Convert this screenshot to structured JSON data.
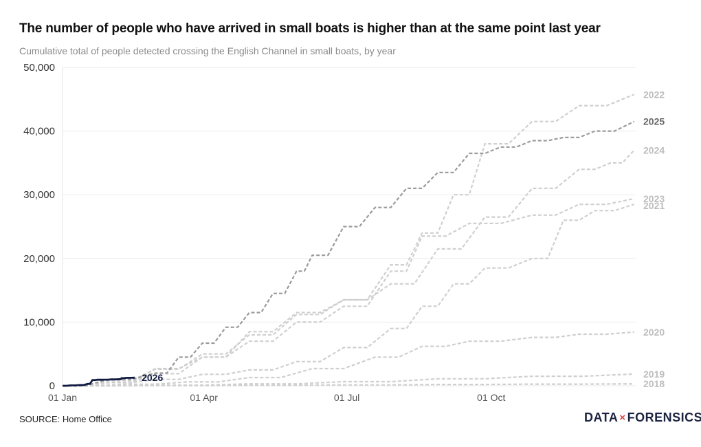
{
  "header": {
    "title": "The number of people who have arrived in small boats is higher than at the same point last year",
    "subtitle": "Cumulative total of people detected crossing the English Channel in small boats, by year"
  },
  "footer": {
    "source": "SOURCE: Home Office",
    "logo_left": "DATA",
    "logo_x": "×",
    "logo_right": "FORENSICS"
  },
  "chart_data": {
    "type": "line",
    "title": "The number of people who have arrived in small boats is higher than at the same point last year",
    "subtitle": "Cumulative total of people detected crossing the English Channel in small boats, by year",
    "xlabel": "",
    "ylabel": "",
    "x_unit": "day of year",
    "xlim": [
      1,
      366
    ],
    "ylim": [
      0,
      50000
    ],
    "grid": true,
    "legend": "direct labels at line ends",
    "y_ticks": [
      {
        "value": 0,
        "label": "0"
      },
      {
        "value": 10000,
        "label": "10,000"
      },
      {
        "value": 20000,
        "label": "20,000"
      },
      {
        "value": 30000,
        "label": "30,000"
      },
      {
        "value": 40000,
        "label": "40,000"
      },
      {
        "value": 50000,
        "label": "50,000"
      }
    ],
    "x_ticks": [
      {
        "value": 1,
        "label": "01 Jan"
      },
      {
        "value": 91,
        "label": "01 Apr"
      },
      {
        "value": 182,
        "label": "01 Jul"
      },
      {
        "value": 274,
        "label": "01 Oct"
      }
    ],
    "series": [
      {
        "name": "2018",
        "color": "#cfcfcf",
        "label_color": "#bdbdbd",
        "dashed": true,
        "points": [
          [
            1,
            0
          ],
          [
            60,
            30
          ],
          [
            120,
            90
          ],
          [
            180,
            140
          ],
          [
            240,
            200
          ],
          [
            300,
            260
          ],
          [
            365,
            300
          ]
        ]
      },
      {
        "name": "2019",
        "color": "#cfcfcf",
        "label_color": "#bdbdbd",
        "dashed": true,
        "points": [
          [
            1,
            0
          ],
          [
            60,
            100
          ],
          [
            120,
            300
          ],
          [
            180,
            650
          ],
          [
            240,
            1100
          ],
          [
            300,
            1500
          ],
          [
            365,
            1850
          ]
        ]
      },
      {
        "name": "2020",
        "color": "#cfcfcf",
        "label_color": "#bdbdbd",
        "dashed": true,
        "points": [
          [
            1,
            0
          ],
          [
            40,
            250
          ],
          [
            80,
            600
          ],
          [
            120,
            1300
          ],
          [
            160,
            2700
          ],
          [
            200,
            4500
          ],
          [
            230,
            6200
          ],
          [
            260,
            7000
          ],
          [
            300,
            7600
          ],
          [
            330,
            8100
          ],
          [
            365,
            8450
          ]
        ]
      },
      {
        "name": "2021",
        "color": "#cfcfcf",
        "label_color": "#bdbdbd",
        "dashed": true,
        "points": [
          [
            1,
            0
          ],
          [
            30,
            500
          ],
          [
            60,
            1000
          ],
          [
            90,
            1800
          ],
          [
            120,
            2500
          ],
          [
            150,
            3800
          ],
          [
            180,
            6000
          ],
          [
            210,
            9000
          ],
          [
            230,
            12500
          ],
          [
            250,
            16000
          ],
          [
            270,
            18500
          ],
          [
            300,
            20000
          ],
          [
            320,
            26000
          ],
          [
            340,
            27500
          ],
          [
            365,
            28500
          ]
        ]
      },
      {
        "name": "2022",
        "color": "#cfcfcf",
        "label_color": "#bdbdbd",
        "dashed": true,
        "points": [
          [
            1,
            0
          ],
          [
            30,
            500
          ],
          [
            60,
            1900
          ],
          [
            90,
            4500
          ],
          [
            120,
            8500
          ],
          [
            150,
            11500
          ],
          [
            180,
            13500
          ],
          [
            210,
            19000
          ],
          [
            230,
            24000
          ],
          [
            250,
            30000
          ],
          [
            270,
            38000
          ],
          [
            300,
            41500
          ],
          [
            330,
            44000
          ],
          [
            365,
            45750
          ]
        ]
      },
      {
        "name": "2023",
        "color": "#cfcfcf",
        "label_color": "#bdbdbd",
        "dashed": true,
        "points": [
          [
            1,
            0
          ],
          [
            30,
            500
          ],
          [
            60,
            2700
          ],
          [
            90,
            4500
          ],
          [
            120,
            7000
          ],
          [
            150,
            10000
          ],
          [
            180,
            12500
          ],
          [
            210,
            18000
          ],
          [
            230,
            23500
          ],
          [
            260,
            25500
          ],
          [
            300,
            26800
          ],
          [
            330,
            28500
          ],
          [
            365,
            29400
          ]
        ]
      },
      {
        "name": "2024",
        "color": "#cfcfcf",
        "label_color": "#bdbdbd",
        "dashed": true,
        "points": [
          [
            1,
            0
          ],
          [
            30,
            800
          ],
          [
            60,
            2600
          ],
          [
            90,
            5000
          ],
          [
            120,
            8000
          ],
          [
            150,
            11200
          ],
          [
            180,
            13500
          ],
          [
            210,
            16000
          ],
          [
            240,
            21500
          ],
          [
            270,
            26500
          ],
          [
            300,
            31000
          ],
          [
            330,
            34000
          ],
          [
            350,
            35000
          ],
          [
            365,
            37000
          ]
        ]
      },
      {
        "name": "2025",
        "color": "#9a9a9a",
        "label_color": "#666666",
        "dashed": true,
        "points": [
          [
            1,
            0
          ],
          [
            30,
            1000
          ],
          [
            60,
            2000
          ],
          [
            75,
            4500
          ],
          [
            90,
            6700
          ],
          [
            105,
            9200
          ],
          [
            120,
            11500
          ],
          [
            135,
            14500
          ],
          [
            150,
            18000
          ],
          [
            160,
            20500
          ],
          [
            180,
            25000
          ],
          [
            200,
            28000
          ],
          [
            220,
            31000
          ],
          [
            240,
            33500
          ],
          [
            260,
            36500
          ],
          [
            280,
            37500
          ],
          [
            300,
            38500
          ],
          [
            320,
            39000
          ],
          [
            340,
            40000
          ],
          [
            365,
            41500
          ]
        ]
      },
      {
        "name": "2026",
        "color": "#0f1a40",
        "label_color": "#0f1a40",
        "dashed": false,
        "points": [
          [
            1,
            0
          ],
          [
            6,
            60
          ],
          [
            12,
            120
          ],
          [
            17,
            300
          ],
          [
            20,
            900
          ],
          [
            23,
            950
          ],
          [
            28,
            960
          ],
          [
            32,
            1000
          ],
          [
            38,
            1050
          ],
          [
            38.5,
            1200
          ],
          [
            42,
            1250
          ],
          [
            47,
            1270
          ]
        ]
      }
    ]
  }
}
